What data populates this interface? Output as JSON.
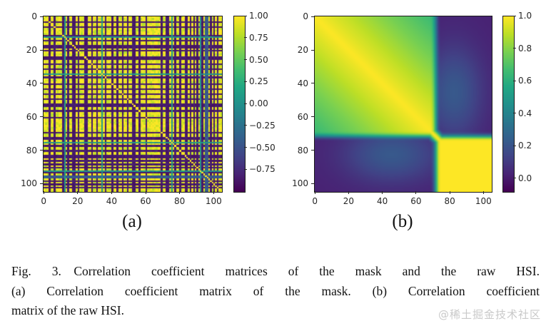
{
  "figure": {
    "caption": {
      "lines": [
        "Fig. 3.  Correlation coefficient matrices of the mask and the raw HSI.",
        "(a) Correlation coefficient matrix of the mask. (b) Correlation coefficient",
        "matrix of the raw HSI."
      ],
      "full": "Fig. 3. Correlation coefficient matrices of the mask and the raw HSI. (a) Correlation coefficient matrix of the mask. (b) Correlation coefficient matrix of the raw HSI."
    },
    "watermark": "@稀土掘金技术社区"
  },
  "chart_data": [
    {
      "type": "heatmap",
      "panel_label": "(a)",
      "title": "Correlation coefficient matrix of the mask",
      "xlabel": "",
      "ylabel": "",
      "n_bands": 105,
      "x_tick_values": [
        0,
        20,
        40,
        60,
        80,
        100
      ],
      "x_tick_labels": [
        "0",
        "20",
        "40",
        "60",
        "80",
        "100"
      ],
      "y_tick_values": [
        0,
        20,
        40,
        60,
        80,
        100
      ],
      "y_tick_labels": [
        "0",
        "20",
        "40",
        "60",
        "80",
        "100"
      ],
      "colormap": "viridis",
      "vmin": -1.0,
      "vmax": 1.0,
      "colorbar_tick_values": [
        1.0,
        0.75,
        0.5,
        0.25,
        0.0,
        -0.25,
        -0.5,
        -0.75
      ],
      "colorbar_tick_labels": [
        "1.00",
        "0.75",
        "0.50",
        "0.25",
        "0.00",
        "−0.25",
        "−0.50",
        "−0.75"
      ],
      "pattern": {
        "background_value": 1.0,
        "background_noise": 0.25,
        "diagonal_value": 1.0,
        "dark_bands": [
          3,
          6,
          11,
          14,
          17,
          18,
          20,
          24,
          25,
          28,
          31,
          36,
          40,
          43,
          46,
          49,
          52,
          53,
          56,
          60,
          69,
          72,
          73,
          77,
          80,
          83,
          84,
          86,
          88,
          90,
          93,
          98,
          100,
          102
        ],
        "dark_value": -0.92,
        "teal_bands": [
          12,
          34,
          75,
          92
        ],
        "teal_value": 0.05,
        "blue_bands": [
          95,
          96
        ],
        "blue_value": -0.45
      }
    },
    {
      "type": "heatmap",
      "panel_label": "(b)",
      "title": "Correlation coefficient matrix of the raw HSI",
      "xlabel": "",
      "ylabel": "",
      "n_bands": 105,
      "x_tick_values": [
        0,
        20,
        40,
        60,
        80,
        100
      ],
      "x_tick_labels": [
        "0",
        "20",
        "40",
        "60",
        "80",
        "100"
      ],
      "y_tick_values": [
        0,
        20,
        40,
        60,
        80,
        100
      ],
      "y_tick_labels": [
        "0",
        "20",
        "40",
        "60",
        "80",
        "100"
      ],
      "colormap": "viridis",
      "vmin": -0.08,
      "vmax": 1.0,
      "colorbar_tick_values": [
        1.0,
        0.8,
        0.6,
        0.4,
        0.2,
        0.0
      ],
      "colorbar_tick_labels": [
        "1.0",
        "0.8",
        "0.6",
        "0.4",
        "0.2",
        "0.0"
      ],
      "structure": {
        "signal_fade": [
          66,
          74
        ],
        "noise_fade": [
          68,
          78
        ],
        "signal_span": 70,
        "signal_falloff": 0.35,
        "noise_corr": 1.0,
        "cross_base": 0.02,
        "cross_bump_amp": 0.2,
        "cross_bump_center": [
          45,
          82
        ],
        "cross_bump_sigma": [
          20,
          12
        ],
        "diag_ridge_sigma": 3.2
      }
    }
  ]
}
